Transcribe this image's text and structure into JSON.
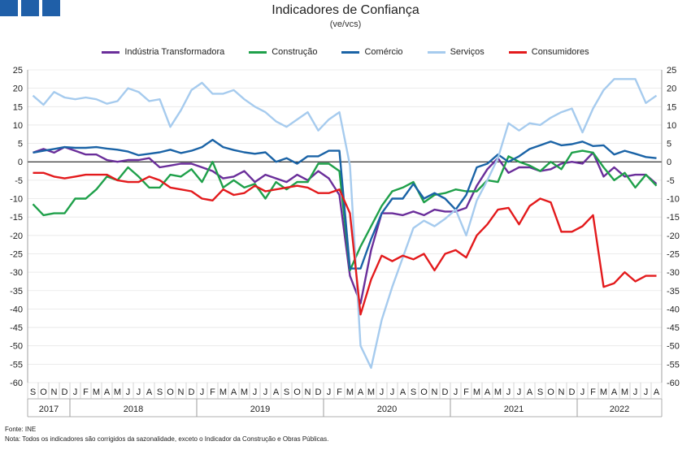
{
  "title": "Indicadores de Confiança",
  "subtitle": "(ve/vcs)",
  "footnotes": {
    "source": "Fonte: INE",
    "note": "Nota: Todos os indicadores são corrigidos da sazonalidade, exceto o Indicador da Construção e Obras Públicas."
  },
  "chart_data": {
    "type": "line",
    "title": "Indicadores de Confiança",
    "subtitle": "(ve/vcs)",
    "ylim": [
      -60,
      25
    ],
    "yticks": [
      25,
      20,
      15,
      10,
      5,
      0,
      -5,
      -10,
      -15,
      -20,
      -25,
      -30,
      -35,
      -40,
      -45,
      -50,
      -55,
      -60
    ],
    "grid": true,
    "legend_position": "top",
    "x": [
      "S",
      "O",
      "N",
      "D",
      "J",
      "F",
      "M",
      "A",
      "M",
      "J",
      "J",
      "A",
      "S",
      "O",
      "N",
      "D",
      "J",
      "F",
      "M",
      "A",
      "M",
      "J",
      "J",
      "A",
      "S",
      "O",
      "N",
      "D",
      "J",
      "F",
      "M",
      "A",
      "M",
      "J",
      "J",
      "A",
      "S",
      "O",
      "N",
      "D",
      "J",
      "F",
      "M",
      "A",
      "M",
      "J",
      "J",
      "A",
      "S",
      "O",
      "N",
      "D",
      "J",
      "F",
      "M",
      "A",
      "M",
      "J",
      "J",
      "A"
    ],
    "years": [
      {
        "label": "2017",
        "start": 0,
        "count": 4
      },
      {
        "label": "2018",
        "start": 4,
        "count": 12
      },
      {
        "label": "2019",
        "start": 16,
        "count": 12
      },
      {
        "label": "2020",
        "start": 28,
        "count": 12
      },
      {
        "label": "2021",
        "start": 40,
        "count": 12
      },
      {
        "label": "2022",
        "start": 52,
        "count": 8
      }
    ],
    "series": [
      {
        "name": "Indústria Transformadora",
        "color": "#6a2e9a",
        "values": [
          2.5,
          3.5,
          2.5,
          4,
          3,
          2,
          2,
          0.5,
          0,
          0.5,
          0.5,
          1,
          -1.5,
          -1,
          -0.5,
          -0.5,
          -1.5,
          -2.5,
          -4.5,
          -4,
          -2.5,
          -5.5,
          -3.5,
          -4.5,
          -5.5,
          -3.5,
          -5,
          -2.5,
          -4.5,
          -9,
          -31,
          -38.5,
          -24,
          -14,
          -14,
          -14.5,
          -13.5,
          -14.5,
          -13,
          -13.5,
          -13.5,
          -12.5,
          -6.5,
          -2,
          1,
          -3,
          -1.5,
          -1.5,
          -2.5,
          -2,
          -0.5,
          0,
          -0.5,
          2.5,
          -4,
          -1.5,
          -4,
          -3.5,
          -3.5,
          -6
        ]
      },
      {
        "name": "Construção",
        "color": "#1fa04a",
        "values": [
          -11.5,
          -14.5,
          -14,
          -14,
          -10,
          -10,
          -7.5,
          -4,
          -5,
          -1.5,
          -4,
          -7,
          -7,
          -3.5,
          -4,
          -2,
          -5.5,
          0,
          -7,
          -5,
          -7,
          -6,
          -10,
          -5.5,
          -7.5,
          -5.5,
          -5.5,
          -0.5,
          -0.5,
          -2.5,
          -29.5,
          -23,
          -17.5,
          -12,
          -8,
          -7,
          -5.5,
          -11,
          -9,
          -8.5,
          -7.5,
          -8,
          -8,
          -5,
          -5.5,
          1.5,
          0,
          -1,
          -2.5,
          0,
          -2,
          2.5,
          3,
          2.5,
          -1.5,
          -5,
          -3,
          -7,
          -3.5,
          -6.5
        ]
      },
      {
        "name": "Comércio",
        "color": "#1a63a6",
        "values": [
          2.5,
          3,
          3.5,
          4,
          3.8,
          3.8,
          4,
          3.6,
          3.3,
          2.8,
          1.8,
          2.2,
          2.6,
          3.3,
          2.4,
          3,
          4,
          6,
          4,
          3.2,
          2.6,
          2.2,
          2.6,
          0,
          1,
          -0.5,
          1.5,
          1.5,
          3,
          3,
          -29,
          -29,
          -21,
          -14,
          -10,
          -10,
          -6,
          -10,
          -8.5,
          -10,
          -13,
          -9,
          -1.5,
          -0.5,
          2,
          0,
          1.5,
          3.5,
          4.5,
          5.5,
          4.5,
          4.8,
          5.5,
          4.3,
          4.5,
          2,
          3,
          2.2,
          1.3,
          1
        ]
      },
      {
        "name": "Serviços",
        "color": "#a6cbee",
        "values": [
          18,
          15.5,
          19,
          17.5,
          17,
          17.5,
          17,
          15.8,
          16.5,
          20,
          19,
          16.5,
          17,
          9.5,
          14,
          19.5,
          21.5,
          18.5,
          18.5,
          19.5,
          17,
          15,
          13.5,
          11,
          9.5,
          11.5,
          13.5,
          8.5,
          11.5,
          13.5,
          -1,
          -50,
          -56,
          -43,
          -34,
          -26,
          -18,
          -16,
          -17.5,
          -15.5,
          -13,
          -20,
          -10.5,
          -5,
          1,
          10.5,
          8.5,
          10.5,
          10,
          12,
          13.5,
          14.5,
          8,
          14.5,
          19.5,
          22.5,
          22.5,
          22.5,
          16,
          18
        ]
      },
      {
        "name": "Consumidores",
        "color": "#e31a1c",
        "values": [
          -3,
          -3,
          -4,
          -4.5,
          -4,
          -3.5,
          -3.5,
          -3.5,
          -5,
          -5.5,
          -5.5,
          -4,
          -5,
          -7,
          -7.5,
          -8,
          -10,
          -10.5,
          -7.5,
          -9,
          -8.5,
          -6.5,
          -8,
          -7.5,
          -7,
          -6.5,
          -7,
          -8.5,
          -8.5,
          -7.5,
          -14,
          -41.5,
          -32,
          -25.5,
          -27,
          -25.5,
          -26.5,
          -25,
          -29.5,
          -25,
          -24,
          -26,
          -20,
          -17,
          -13,
          -12.5,
          -17,
          -12,
          -10,
          -11,
          -19,
          -19,
          -17.5,
          -14.5,
          -34,
          -33,
          -30,
          -32.5,
          -31,
          -31
        ]
      }
    ]
  }
}
